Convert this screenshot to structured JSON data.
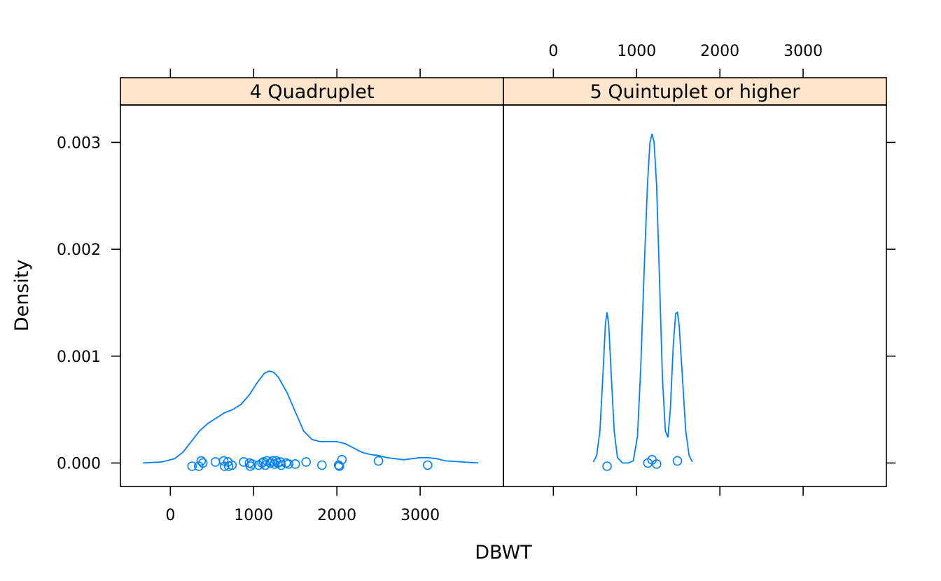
{
  "chart_data": {
    "type": "density",
    "xlabel": "DBWT",
    "ylabel": "Density",
    "xlim": [
      -600,
      4000
    ],
    "ylim": [
      -0.00022,
      0.00335
    ],
    "x_ticks": [
      0,
      1000,
      2000,
      3000
    ],
    "y_ticks": [
      0,
      0.001,
      0.002,
      0.003
    ],
    "y_tick_labels": [
      "0.000",
      "0.001",
      "0.002",
      "0.003"
    ],
    "colors": {
      "line": "#0080ff",
      "strip": "#ffe5cc",
      "frame": "#000000"
    },
    "panels": [
      {
        "label": "4 Quadruplet",
        "density": [
          [
            -330,
            0.0
          ],
          [
            -100,
            1e-05
          ],
          [
            50,
            4e-05
          ],
          [
            150,
            0.0001
          ],
          [
            250,
            0.0002
          ],
          [
            350,
            0.0003
          ],
          [
            450,
            0.00037
          ],
          [
            550,
            0.00042
          ],
          [
            650,
            0.00047
          ],
          [
            750,
            0.0005
          ],
          [
            850,
            0.00055
          ],
          [
            950,
            0.00064
          ],
          [
            1050,
            0.00076
          ],
          [
            1130,
            0.00084
          ],
          [
            1185,
            0.00086
          ],
          [
            1240,
            0.00085
          ],
          [
            1300,
            0.0008
          ],
          [
            1400,
            0.00066
          ],
          [
            1500,
            0.00048
          ],
          [
            1600,
            0.0003
          ],
          [
            1700,
            0.00022
          ],
          [
            1800,
            0.0002
          ],
          [
            1900,
            0.0002
          ],
          [
            2000,
            0.0002
          ],
          [
            2100,
            0.00018
          ],
          [
            2200,
            0.00014
          ],
          [
            2300,
            0.0001
          ],
          [
            2400,
            8e-05
          ],
          [
            2500,
            7e-05
          ],
          [
            2600,
            5e-05
          ],
          [
            2700,
            4e-05
          ],
          [
            2800,
            3e-05
          ],
          [
            2900,
            4e-05
          ],
          [
            3000,
            5e-05
          ],
          [
            3100,
            5e-05
          ],
          [
            3200,
            4e-05
          ],
          [
            3300,
            2e-05
          ],
          [
            3500,
            1e-05
          ],
          [
            3700,
            0.0
          ]
        ],
        "points": [
          [
            260,
            -3e-05
          ],
          [
            340,
            -3e-05
          ],
          [
            370,
            2e-05
          ],
          [
            390,
            0.0
          ],
          [
            540,
            1e-05
          ],
          [
            640,
            2e-05
          ],
          [
            650,
            -3e-05
          ],
          [
            690,
            1e-05
          ],
          [
            700,
            -3e-05
          ],
          [
            740,
            -2e-05
          ],
          [
            880,
            1e-05
          ],
          [
            950,
            0.0
          ],
          [
            960,
            -3e-05
          ],
          [
            980,
            -1e-05
          ],
          [
            1060,
            -2e-05
          ],
          [
            1100,
            0.0
          ],
          [
            1120,
            1e-05
          ],
          [
            1140,
            -2e-05
          ],
          [
            1160,
            2e-05
          ],
          [
            1200,
            0.0
          ],
          [
            1230,
            2e-05
          ],
          [
            1250,
            -1e-05
          ],
          [
            1270,
            2e-05
          ],
          [
            1290,
            0.0
          ],
          [
            1320,
            1e-05
          ],
          [
            1330,
            -2e-05
          ],
          [
            1390,
            0.0
          ],
          [
            1420,
            -1e-05
          ],
          [
            1500,
            -1e-05
          ],
          [
            1630,
            1e-05
          ],
          [
            1820,
            -2e-05
          ],
          [
            2020,
            -2e-05
          ],
          [
            2030,
            -3e-05
          ],
          [
            2060,
            3e-05
          ],
          [
            2500,
            2e-05
          ],
          [
            3090,
            -2e-05
          ]
        ]
      },
      {
        "label": "5 Quintuplet or higher",
        "density": [
          [
            480,
            1e-05
          ],
          [
            520,
            7e-05
          ],
          [
            560,
            0.0003
          ],
          [
            600,
            0.0009
          ],
          [
            625,
            0.0013
          ],
          [
            645,
            0.00141
          ],
          [
            665,
            0.0013
          ],
          [
            690,
            0.0009
          ],
          [
            730,
            0.0003
          ],
          [
            770,
            5e-05
          ],
          [
            830,
            0.0
          ],
          [
            900,
            0.0
          ],
          [
            960,
            2e-05
          ],
          [
            1010,
            0.00025
          ],
          [
            1050,
            0.0009
          ],
          [
            1090,
            0.0018
          ],
          [
            1130,
            0.0026
          ],
          [
            1160,
            0.003
          ],
          [
            1185,
            0.00308
          ],
          [
            1210,
            0.003
          ],
          [
            1240,
            0.0026
          ],
          [
            1275,
            0.0017
          ],
          [
            1310,
            0.0008
          ],
          [
            1345,
            0.0003
          ],
          [
            1375,
            0.00024
          ],
          [
            1405,
            0.0005
          ],
          [
            1440,
            0.0011
          ],
          [
            1470,
            0.0014
          ],
          [
            1490,
            0.00141
          ],
          [
            1510,
            0.0013
          ],
          [
            1550,
            0.0008
          ],
          [
            1590,
            0.0003
          ],
          [
            1630,
            7e-05
          ],
          [
            1670,
            1e-05
          ]
        ],
        "points": [
          [
            645,
            -3e-05
          ],
          [
            1135,
            0.0
          ],
          [
            1185,
            3e-05
          ],
          [
            1240,
            -1e-05
          ],
          [
            1490,
            2e-05
          ]
        ]
      }
    ]
  }
}
